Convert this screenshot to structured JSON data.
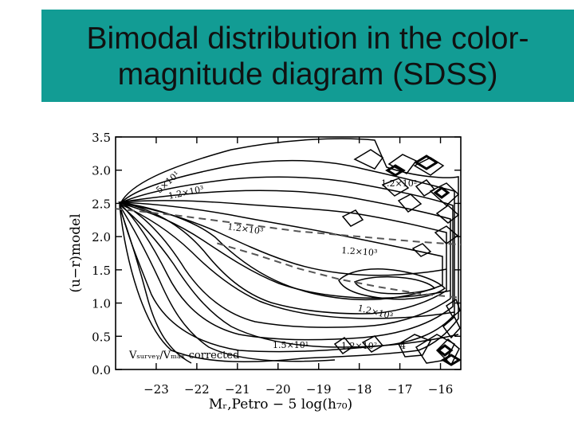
{
  "slide": {
    "title_line1": "Bimodal distribution in the color-",
    "title_line2": "magnitude diagram (SDSS)",
    "colors": {
      "title_bg": "#129c94",
      "frame": "#000000",
      "contour": "#000000",
      "dashed": "#555555"
    }
  },
  "chart_data": {
    "type": "contour",
    "xlabel": "Mᵣ,Petro − 5 log(h₇₀)",
    "ylabel": "(u−r)model",
    "xlim": [
      -24,
      -15.5
    ],
    "ylim": [
      0.0,
      3.5
    ],
    "x_ticks": [
      "−23",
      "−22",
      "−21",
      "−20",
      "−19",
      "−18",
      "−17",
      "−16"
    ],
    "x_tick_values": [
      -23,
      -22,
      -21,
      -20,
      -19,
      -18,
      -17,
      -16
    ],
    "y_ticks": [
      "3.5",
      "3.0",
      "2.5",
      "2.0",
      "1.5",
      "1.0",
      "0.5",
      "0.0"
    ],
    "y_tick_values": [
      3.5,
      3.0,
      2.5,
      2.0,
      1.5,
      1.0,
      0.5,
      0.0
    ],
    "annotation": "Vₛᵤᵣᵥₑᵧ/Vₘₐₓ corrected",
    "contour_labels": [
      "5×10¹",
      "1.2×10³",
      "1.2×10³",
      "1.2×10³",
      "1.2×10³",
      "1.5×10¹",
      "1.2×10²",
      "1.2×10²",
      "4"
    ],
    "ridge_lines": [
      {
        "name": "red sequence",
        "x": [
          -24,
          -22.5,
          -21,
          -19.5,
          -18,
          -16.5,
          -15.5
        ],
        "y": [
          2.42,
          2.32,
          2.2,
          2.08,
          2.0,
          1.92,
          1.88
        ]
      },
      {
        "name": "blue cloud",
        "x": [
          -21.5,
          -20.5,
          -19.5,
          -18.5,
          -17.5,
          -16.5,
          -15.5
        ],
        "y": [
          1.9,
          1.72,
          1.52,
          1.36,
          1.24,
          1.14,
          1.08
        ]
      }
    ]
  }
}
